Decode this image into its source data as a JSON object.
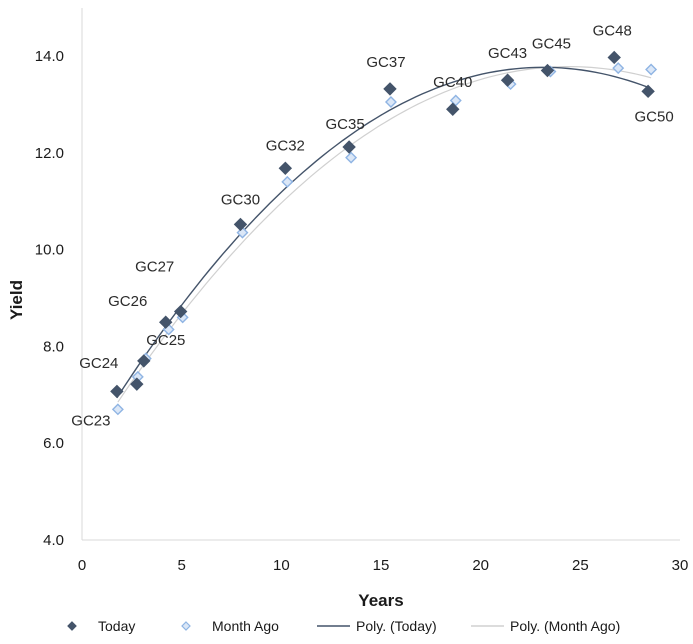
{
  "chart_data": {
    "type": "scatter",
    "title": "",
    "xlabel": "Years",
    "ylabel": "Yield",
    "xlim": [
      0,
      30
    ],
    "ylim": [
      4.0,
      14.0
    ],
    "x_ticks": [
      "0",
      "5",
      "10",
      "15",
      "20",
      "25",
      "30"
    ],
    "y_ticks": [
      "4.0",
      "6.0",
      "8.0",
      "10.0",
      "12.0",
      "14.0"
    ],
    "grid": false,
    "legend_position": "bottom",
    "labels": [
      "GC23",
      "GC24",
      "GC25",
      "GC26",
      "GC27",
      "GC30",
      "GC32",
      "GC35",
      "GC37",
      "GC40",
      "GC43",
      "GC45",
      "GC48",
      "GC50"
    ],
    "series": [
      {
        "name": "Today",
        "color": "#44546a",
        "x": [
          1.75,
          2.75,
          3.1,
          4.2,
          4.95,
          7.95,
          10.2,
          13.4,
          15.45,
          18.6,
          21.35,
          23.35,
          26.7,
          28.4
        ],
        "y": [
          7.07,
          7.22,
          7.7,
          8.5,
          8.72,
          10.52,
          11.68,
          12.12,
          13.32,
          12.9,
          13.5,
          13.7,
          13.97,
          13.27
        ]
      },
      {
        "name": "Month Ago",
        "color": "#8fb4e3",
        "x": [
          1.8,
          2.8,
          3.2,
          4.35,
          5.05,
          8.05,
          10.3,
          13.5,
          15.5,
          18.75,
          21.5,
          23.5,
          26.9,
          28.55
        ],
        "y": [
          6.7,
          7.37,
          7.75,
          8.35,
          8.6,
          10.35,
          11.4,
          11.9,
          13.05,
          13.08,
          13.42,
          13.68,
          13.75,
          13.72
        ]
      }
    ],
    "trendlines": [
      {
        "name": "Poly. (Today)",
        "color": "#44546a",
        "fit": "quadratic",
        "source": "Today"
      },
      {
        "name": "Poly. (Month Ago)",
        "color": "#d0d0d0",
        "fit": "quadratic",
        "source": "Month Ago"
      }
    ]
  }
}
